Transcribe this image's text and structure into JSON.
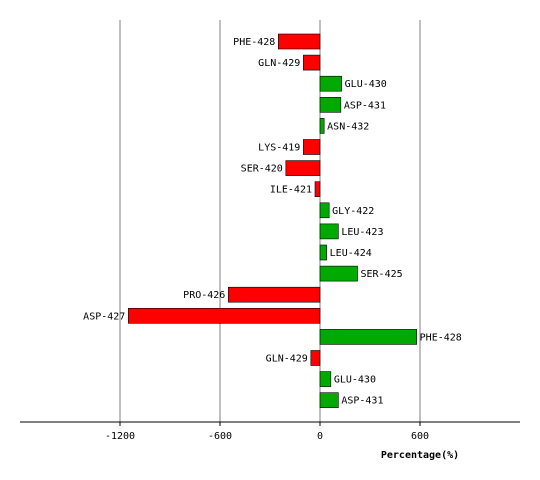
{
  "chart_data": {
    "type": "bar",
    "orientation": "horizontal",
    "xlabel": "Percentage(%)",
    "xlim": [
      -1800,
      1200
    ],
    "xticks": [
      -1200,
      -600,
      0,
      600
    ],
    "xtick_labels": [
      "-1200",
      "-600",
      "0",
      "600"
    ],
    "grid": "vertical",
    "colors": {
      "positive": "#00aa00",
      "negative": "#ff0000",
      "grid": "#808080"
    },
    "categories": [
      "PHE-428",
      "GLN-429",
      "GLU-430",
      "ASP-431",
      "ASN-432",
      "LYS-419",
      "SER-420",
      "ILE-421",
      "GLY-422",
      "LEU-423",
      "LEU-424",
      "SER-425",
      "PRO-426",
      "ASP-427",
      "PHE-428",
      "GLN-429",
      "GLU-430",
      "ASP-431"
    ],
    "values": [
      -250,
      -100,
      130,
      125,
      25,
      -100,
      -205,
      -30,
      55,
      110,
      40,
      225,
      -550,
      -1150,
      580,
      -55,
      65,
      110
    ]
  }
}
